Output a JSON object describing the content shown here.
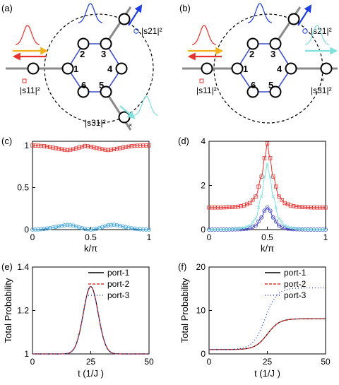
{
  "panels": {
    "a": {
      "label": "(a)",
      "nodes": [
        "1",
        "2",
        "3",
        "4",
        "5",
        "6"
      ],
      "s_labels": {
        "s21": "|s21|²",
        "s11": "|s11|²",
        "s31": "|s31|²"
      }
    },
    "b": {
      "label": "(b)",
      "nodes": [
        "1",
        "2",
        "3",
        "4",
        "5",
        "6"
      ],
      "s_labels": {
        "s21": "|s21|²",
        "s11": "|s11|²",
        "s31": "|s31|²"
      }
    }
  },
  "colors": {
    "red": "#e8322e",
    "blue": "#1f3fe0",
    "cyan": "#7fe0dc",
    "orange": "#f3b21c",
    "hex": "#3a4fd0",
    "lead": "#8a8a8a"
  },
  "chart_data": [
    {
      "panel": "(c)",
      "type": "line",
      "xlabel": "k/π",
      "ylabel": "",
      "xlim": [
        0,
        1
      ],
      "ylim": [
        0,
        1.05
      ],
      "xticks": [
        "0",
        "0.5",
        "1"
      ],
      "yticks": [
        "0",
        "0.5",
        "1"
      ],
      "series": [
        {
          "color": "#e8322e",
          "marker": "square",
          "x": [
            0,
            0.05,
            0.1,
            0.15,
            0.2,
            0.25,
            0.3,
            0.35,
            0.4,
            0.45,
            0.5,
            0.55,
            0.6,
            0.65,
            0.7,
            0.75,
            0.8,
            0.85,
            0.9,
            0.95,
            1
          ],
          "values": [
            1.0,
            0.998,
            0.992,
            0.982,
            0.968,
            0.955,
            0.945,
            0.955,
            0.975,
            0.995,
            0.985,
            0.97,
            0.955,
            0.945,
            0.955,
            0.968,
            0.982,
            0.992,
            0.998,
            1.0,
            1.0
          ]
        },
        {
          "color": "#3aa3e0",
          "marker": "circle",
          "x": [
            0,
            0.05,
            0.1,
            0.15,
            0.2,
            0.25,
            0.3,
            0.35,
            0.4,
            0.45,
            0.5,
            0.55,
            0.6,
            0.65,
            0.7,
            0.75,
            0.8,
            0.85,
            0.9,
            0.95,
            1
          ],
          "values": [
            0.0,
            0.002,
            0.008,
            0.018,
            0.032,
            0.045,
            0.055,
            0.048,
            0.028,
            0.008,
            0.0,
            0.01,
            0.03,
            0.05,
            0.058,
            0.045,
            0.03,
            0.016,
            0.006,
            0.001,
            0.0
          ]
        }
      ]
    },
    {
      "panel": "(d)",
      "type": "line",
      "xlabel": "k/π",
      "ylabel": "",
      "xlim": [
        0,
        1
      ],
      "ylim": [
        0,
        4
      ],
      "xticks": [
        "0",
        "0.5",
        "1"
      ],
      "yticks": [
        "0",
        "2",
        "4"
      ],
      "series": [
        {
          "color": "#e8322e",
          "marker": "square",
          "x": [
            0,
            0.05,
            0.1,
            0.15,
            0.2,
            0.25,
            0.3,
            0.35,
            0.4,
            0.45,
            0.48,
            0.5,
            0.52,
            0.55,
            0.6,
            0.65,
            0.7,
            0.75,
            0.8,
            0.85,
            0.9,
            0.95,
            1
          ],
          "values": [
            1.0,
            1.0,
            1.0,
            1.01,
            1.02,
            1.04,
            1.09,
            1.2,
            1.5,
            2.4,
            3.3,
            3.9,
            3.3,
            2.4,
            1.5,
            1.2,
            1.09,
            1.04,
            1.02,
            1.01,
            1.0,
            1.0,
            1.0
          ]
        },
        {
          "color": "#3b3fd0",
          "marker": "circle",
          "x": [
            0,
            0.05,
            0.1,
            0.15,
            0.2,
            0.25,
            0.3,
            0.35,
            0.4,
            0.45,
            0.48,
            0.5,
            0.52,
            0.55,
            0.6,
            0.65,
            0.7,
            0.75,
            0.8,
            0.85,
            0.9,
            0.95,
            1
          ],
          "values": [
            0,
            0,
            0,
            0.002,
            0.006,
            0.012,
            0.025,
            0.06,
            0.18,
            0.55,
            0.88,
            1.0,
            0.88,
            0.55,
            0.18,
            0.06,
            0.025,
            0.012,
            0.006,
            0.002,
            0,
            0,
            0
          ]
        },
        {
          "color": "#7fe0dc",
          "marker": "x",
          "x": [
            0,
            0.05,
            0.1,
            0.15,
            0.2,
            0.25,
            0.3,
            0.35,
            0.4,
            0.45,
            0.48,
            0.5,
            0.52,
            0.55,
            0.6,
            0.65,
            0.7,
            0.75,
            0.8,
            0.85,
            0.9,
            0.95,
            1
          ],
          "values": [
            0,
            0,
            0,
            0.01,
            0.02,
            0.04,
            0.09,
            0.18,
            0.5,
            1.5,
            2.45,
            2.95,
            2.45,
            1.5,
            0.5,
            0.18,
            0.09,
            0.04,
            0.02,
            0.01,
            0,
            0,
            0
          ]
        }
      ]
    },
    {
      "panel": "(e)",
      "type": "line",
      "xlabel": "t (1/J )",
      "ylabel": "Total Probability",
      "xlim": [
        0,
        50
      ],
      "ylim": [
        1,
        1.4
      ],
      "xticks": [
        "0",
        "25",
        "50"
      ],
      "yticks": [
        "1",
        "1.2",
        "1.4"
      ],
      "series": [
        {
          "name": "port-1",
          "color": "#000000",
          "style": "solid",
          "peak": 1.31,
          "center": 25,
          "width": 4.5,
          "base": 1.0
        },
        {
          "name": "port-2",
          "color": "#e8322e",
          "style": "dashed",
          "peak": 1.31,
          "center": 25,
          "width": 4.5,
          "base": 1.0
        },
        {
          "name": "port-3",
          "color": "#1f3fe0",
          "style": "dotted",
          "peak": 1.31,
          "center": 25,
          "width": 4.5,
          "base": 1.0
        }
      ]
    },
    {
      "panel": "(f)",
      "type": "line",
      "xlabel": "t (1/J )",
      "ylabel": "Total Probability",
      "xlim": [
        0,
        50
      ],
      "ylim": [
        0,
        20
      ],
      "xticks": [
        "0",
        "25",
        "50"
      ],
      "yticks": [
        "0",
        "10",
        "20"
      ],
      "series": [
        {
          "name": "port-1",
          "color": "#000000",
          "style": "solid",
          "start": 1,
          "end": 8.1,
          "mid": 25,
          "scale": 2.6
        },
        {
          "name": "port-2",
          "color": "#e8322e",
          "style": "dashed",
          "start": 1,
          "end": 8.1,
          "mid": 25,
          "scale": 2.6
        },
        {
          "name": "port-3",
          "color": "#1f3fe0",
          "style": "dotted",
          "start": 1,
          "end": 15.2,
          "mid": 24,
          "scale": 2.6
        }
      ]
    }
  ]
}
